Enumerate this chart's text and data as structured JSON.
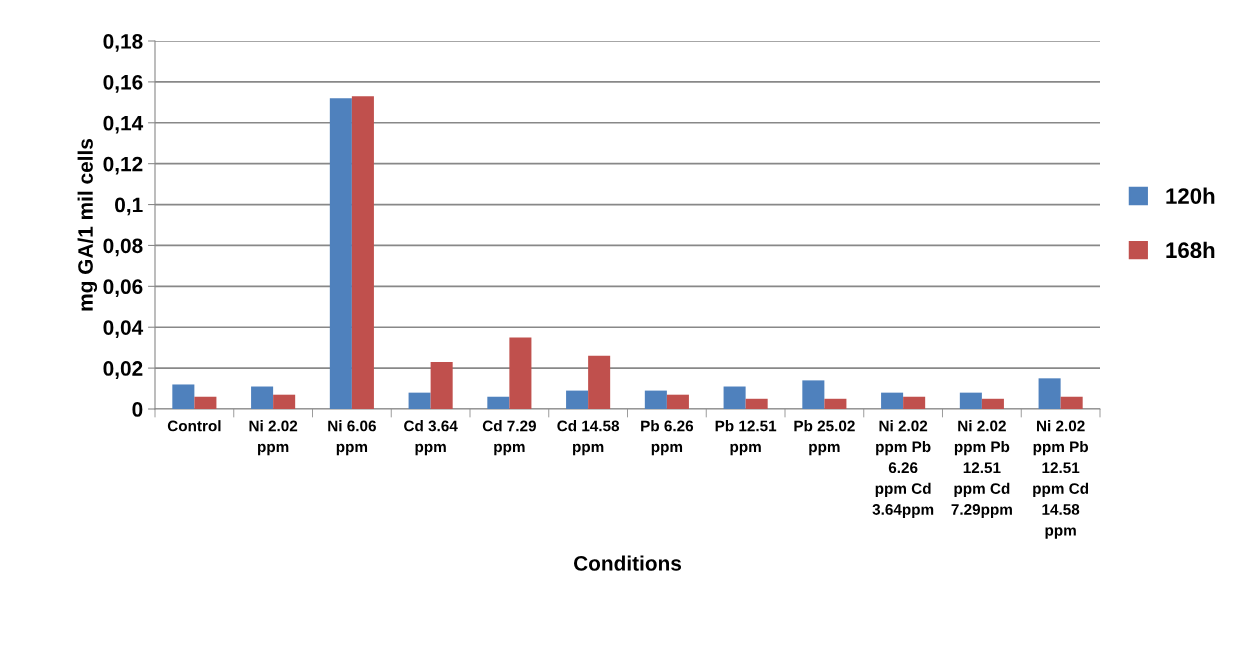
{
  "chart_data": {
    "type": "bar",
    "xlabel": "Conditions",
    "ylabel": "mg GA/1 mil cells",
    "categories": [
      "Control",
      "Ni 2.02\nppm",
      "Ni 6.06\nppm",
      "Cd 3.64\nppm",
      "Cd 7.29\nppm",
      "Cd 14.58\nppm",
      "Pb 6.26\nppm",
      "Pb 12.51\nppm",
      "Pb 25.02\nppm",
      "Ni 2.02\nppm Pb\n6.26\nppm Cd\n3.64ppm",
      "Ni 2.02\nppm Pb\n12.51\nppm Cd\n7.29ppm",
      "Ni 2.02\nppm Pb\n12.51\nppm Cd\n14.58\nppm"
    ],
    "series": [
      {
        "name": "120h",
        "color": "#4f81bd",
        "values": [
          0.012,
          0.011,
          0.152,
          0.008,
          0.006,
          0.009,
          0.009,
          0.011,
          0.014,
          0.008,
          0.008,
          0.015
        ]
      },
      {
        "name": "168h",
        "color": "#c0504d",
        "values": [
          0.006,
          0.007,
          0.153,
          0.023,
          0.035,
          0.026,
          0.007,
          0.005,
          0.005,
          0.006,
          0.005,
          0.006
        ]
      }
    ],
    "ylim": [
      0,
      0.18
    ],
    "yticks": [
      {
        "value": 0,
        "label": "0"
      },
      {
        "value": 0.02,
        "label": "0,02"
      },
      {
        "value": 0.04,
        "label": "0,04"
      },
      {
        "value": 0.06,
        "label": "0,06"
      },
      {
        "value": 0.08,
        "label": "0,08"
      },
      {
        "value": 0.1,
        "label": "0,1"
      },
      {
        "value": 0.12,
        "label": "0,12"
      },
      {
        "value": 0.14,
        "label": "0,14"
      },
      {
        "value": 0.16,
        "label": "0,16"
      },
      {
        "value": 0.18,
        "label": "0,18"
      }
    ],
    "grid": "y",
    "legend": "right"
  }
}
